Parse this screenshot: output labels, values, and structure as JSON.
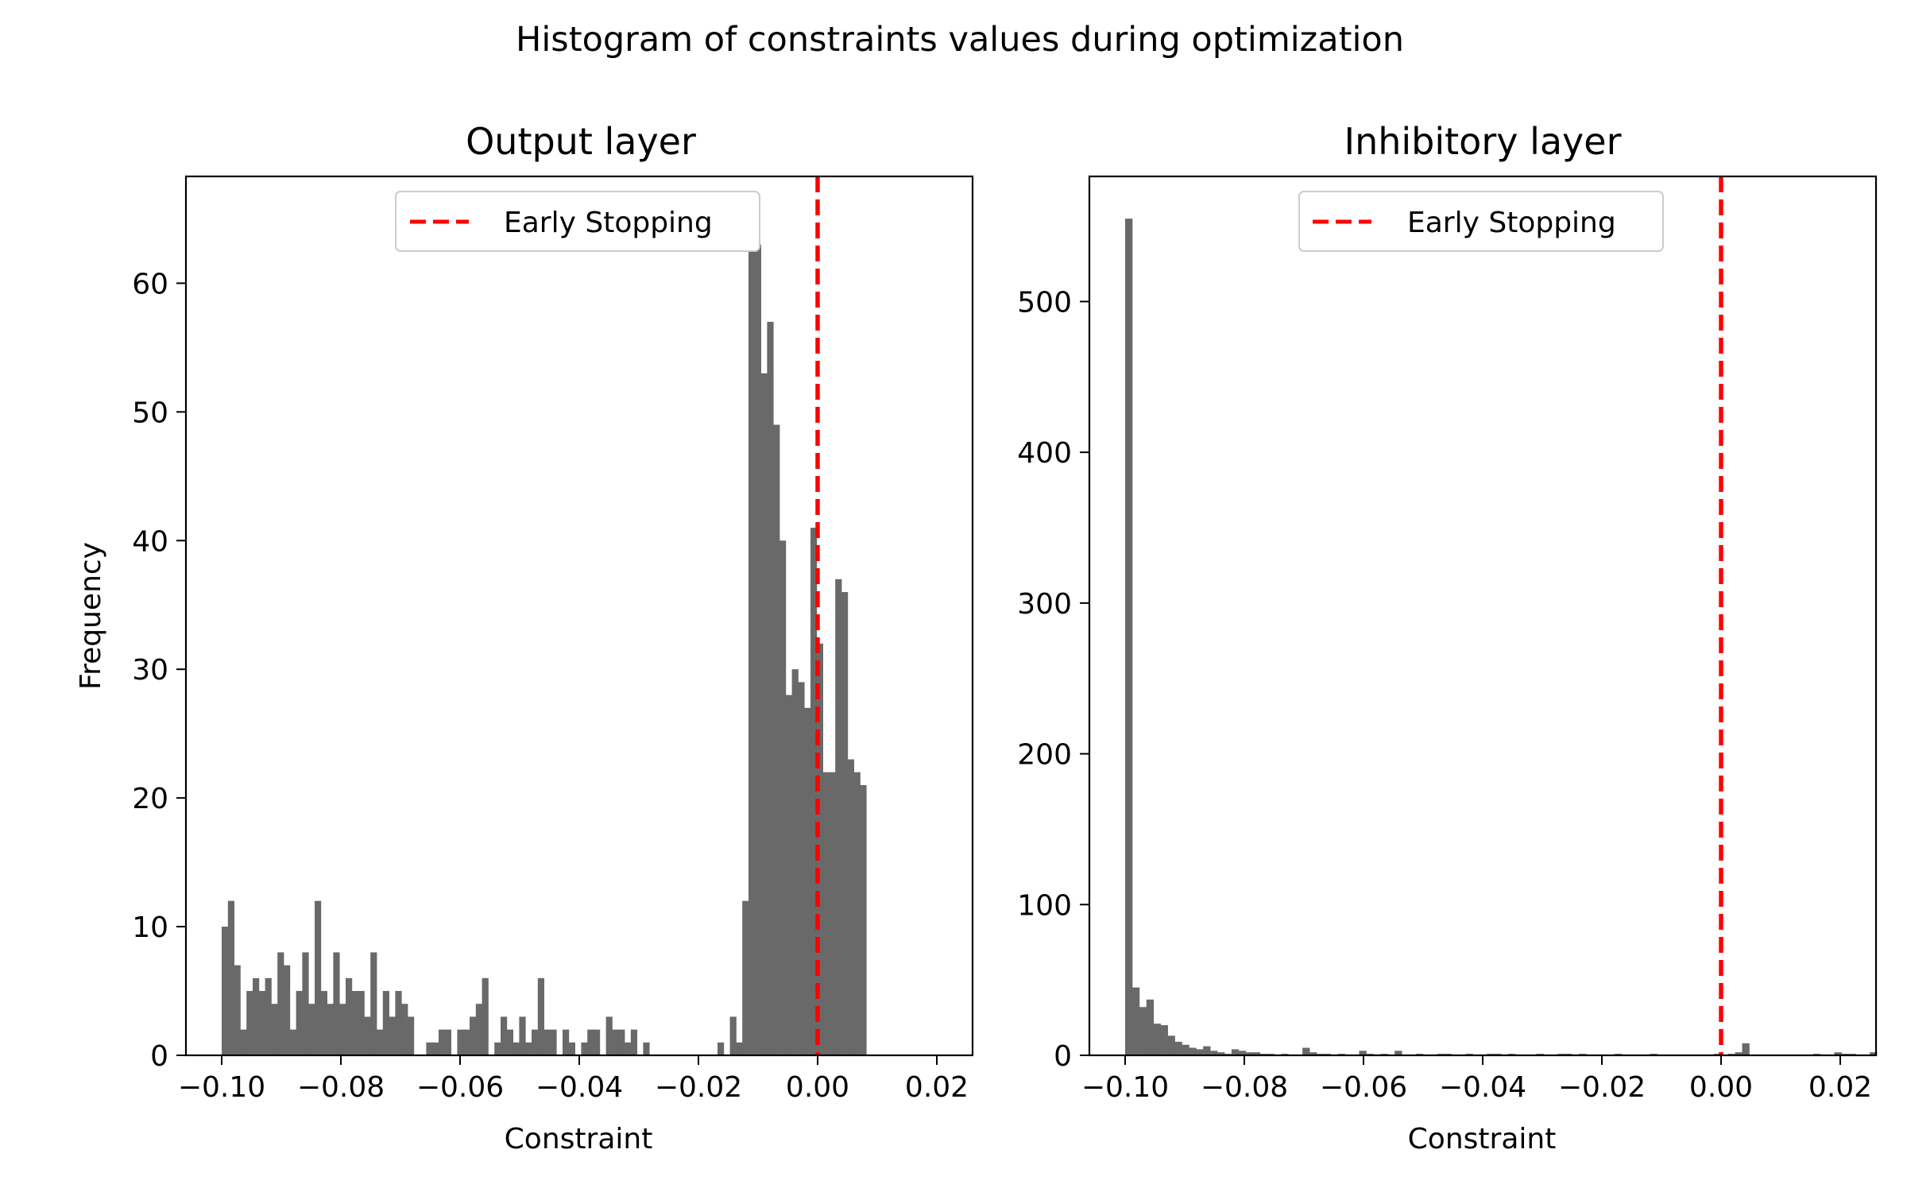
{
  "figure": {
    "title": "Histogram of constraints values during optimization"
  },
  "chart_data": [
    {
      "type": "bar",
      "title": "Output layer",
      "xlabel": "Constraint",
      "ylabel": "Frequency",
      "xlim": [
        -0.106,
        0.026
      ],
      "ylim": [
        0,
        68.3
      ],
      "xticks": [
        -0.1,
        -0.08,
        -0.06,
        -0.04,
        -0.02,
        0.0,
        0.02
      ],
      "xtick_labels": [
        "−0.10",
        "−0.08",
        "−0.06",
        "−0.04",
        "−0.02",
        "0.00",
        "0.02"
      ],
      "yticks": [
        0,
        10,
        20,
        30,
        40,
        50,
        60
      ],
      "ytick_labels": [
        "0",
        "10",
        "20",
        "30",
        "40",
        "50",
        "60"
      ],
      "bins": {
        "start": -0.1,
        "width": 0.00104,
        "counts": [
          10,
          12,
          7,
          2,
          5,
          6,
          5,
          6,
          4,
          8,
          7,
          2,
          5,
          8,
          4,
          12,
          5,
          4,
          8,
          4,
          6,
          5,
          5,
          3,
          8,
          2,
          5,
          3,
          5,
          4,
          3,
          0,
          0,
          1,
          1,
          2,
          2,
          0,
          2,
          2,
          3,
          4,
          6,
          0,
          1,
          3,
          2,
          1,
          3,
          1,
          2,
          6,
          2,
          2,
          0,
          2,
          1,
          0,
          1,
          2,
          2,
          0,
          3,
          2,
          2,
          1,
          2,
          0,
          1,
          0,
          0,
          0,
          0,
          0,
          0,
          0,
          0,
          0,
          0,
          0,
          1,
          0,
          3,
          1,
          12,
          65,
          63,
          53,
          57,
          49,
          40,
          28,
          30,
          29,
          27,
          41,
          32,
          22,
          22,
          37,
          36,
          23,
          22,
          21
        ]
      },
      "reference_line": {
        "x": 0.0,
        "label": "Early Stopping",
        "color": "#ff0000",
        "style": "dashed"
      },
      "legend": "upper center",
      "bar_color": "#696969"
    },
    {
      "type": "bar",
      "title": "Inhibitory layer",
      "xlabel": "Constraint",
      "ylabel": "",
      "xlim": [
        -0.106,
        0.026
      ],
      "ylim": [
        0,
        583
      ],
      "xticks": [
        -0.1,
        -0.08,
        -0.06,
        -0.04,
        -0.02,
        0.0,
        0.02
      ],
      "xtick_labels": [
        "−0.10",
        "−0.08",
        "−0.06",
        "−0.04",
        "−0.02",
        "0.00",
        "0.02"
      ],
      "yticks": [
        0,
        100,
        200,
        300,
        400,
        500
      ],
      "ytick_labels": [
        "0",
        "100",
        "200",
        "300",
        "400",
        "500"
      ],
      "bins": {
        "start": -0.1,
        "width": 0.00119,
        "counts": [
          555,
          45,
          32,
          37,
          21,
          20,
          13,
          9,
          7,
          5,
          4,
          6,
          3,
          2,
          1,
          4,
          3,
          2,
          2,
          1,
          1,
          0,
          1,
          0,
          0,
          5,
          2,
          1,
          1,
          0,
          1,
          0,
          0,
          3,
          1,
          0,
          1,
          0,
          3,
          0,
          0,
          1,
          0,
          0,
          1,
          1,
          0,
          0,
          1,
          0,
          0,
          1,
          1,
          0,
          1,
          0,
          0,
          0,
          1,
          0,
          0,
          1,
          1,
          0,
          1,
          0,
          0,
          0,
          0,
          1,
          0,
          0,
          0,
          0,
          1,
          0,
          0,
          0,
          0,
          0,
          0,
          0,
          0,
          1,
          0,
          1,
          2,
          8,
          0,
          0,
          0,
          0,
          0,
          0,
          0,
          0,
          0,
          1,
          0,
          0,
          2,
          1,
          1,
          0,
          0,
          2
        ]
      },
      "reference_line": {
        "x": 0.0,
        "label": "Early Stopping",
        "color": "#ff0000",
        "style": "dashed"
      },
      "legend": "upper center",
      "bar_color": "#696969"
    }
  ]
}
